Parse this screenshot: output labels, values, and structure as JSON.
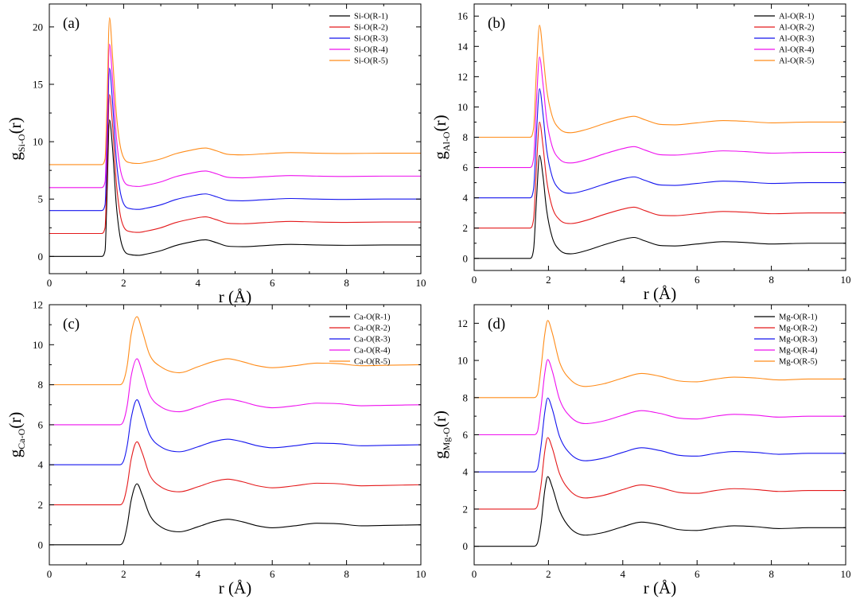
{
  "figure": {
    "colors": {
      "R-1": "#000000",
      "R-2": "#e41a1c",
      "R-3": "#1515ee",
      "R-4": "#ee11ee",
      "R-5": "#ff8c1a"
    }
  },
  "chart_data": [
    {
      "type": "line",
      "panel_label": "(a)",
      "pair": "Si-O",
      "xlabel": "r (Å)",
      "ylabel_main": "g",
      "ylabel_sub": "Si-O",
      "ylabel_tail": "(r)",
      "xlim": [
        0,
        10
      ],
      "ylim": [
        -1.5,
        22
      ],
      "xticks": [
        0,
        2,
        4,
        6,
        8,
        10
      ],
      "yticks": [
        0,
        5,
        10,
        15,
        20
      ],
      "legend_position": "top-right",
      "legend": [
        "Si-O(R-1)",
        "Si-O(R-2)",
        "Si-O(R-3)",
        "Si-O(R-4)",
        "Si-O(R-5)"
      ],
      "offsets": [
        0,
        2,
        4,
        6,
        8
      ],
      "peak_position": 1.62,
      "peak_heights": [
        11.9,
        14.1,
        16.4,
        18.5,
        20.8
      ],
      "x": [
        0,
        1.4,
        1.5,
        1.55,
        1.62,
        1.7,
        1.8,
        1.9,
        2.0,
        2.2,
        2.4,
        2.6,
        3.0,
        3.4,
        3.8,
        4.2,
        4.5,
        4.8,
        5.2,
        5.8,
        6.5,
        7.2,
        8.0,
        9.0,
        10
      ],
      "series": [
        {
          "name": "Si-O(R-1)",
          "color_key": "R-1",
          "values": [
            0,
            0,
            0.5,
            5.0,
            11.9,
            9.5,
            4.6,
            1.8,
            0.6,
            0.15,
            0.1,
            0.2,
            0.5,
            0.95,
            1.25,
            1.45,
            1.2,
            0.9,
            0.85,
            0.95,
            1.05,
            1.0,
            0.97,
            1.0,
            1.0
          ]
        },
        {
          "name": "Si-O(R-2)",
          "color_key": "R-2",
          "values": [
            2,
            2,
            2.5,
            7.0,
            14.1,
            11.5,
            6.6,
            3.8,
            2.6,
            2.15,
            2.1,
            2.2,
            2.5,
            2.95,
            3.25,
            3.45,
            3.2,
            2.9,
            2.85,
            2.95,
            3.05,
            3.0,
            2.97,
            3.0,
            3.0
          ]
        },
        {
          "name": "Si-O(R-3)",
          "color_key": "R-3",
          "values": [
            4,
            4,
            4.5,
            9.0,
            16.4,
            13.5,
            8.6,
            5.8,
            4.6,
            4.15,
            4.1,
            4.2,
            4.5,
            4.95,
            5.25,
            5.45,
            5.2,
            4.9,
            4.85,
            4.95,
            5.05,
            5.0,
            4.97,
            5.0,
            5.0
          ]
        },
        {
          "name": "Si-O(R-4)",
          "color_key": "R-4",
          "values": [
            6,
            6,
            6.5,
            11.0,
            18.5,
            15.5,
            10.6,
            7.8,
            6.6,
            6.15,
            6.1,
            6.2,
            6.5,
            6.95,
            7.25,
            7.45,
            7.2,
            6.9,
            6.85,
            6.95,
            7.05,
            7.0,
            6.97,
            7.0,
            7.0
          ]
        },
        {
          "name": "Si-O(R-5)",
          "color_key": "R-5",
          "values": [
            8,
            8,
            8.5,
            13.0,
            20.8,
            17.5,
            12.6,
            9.8,
            8.6,
            8.15,
            8.1,
            8.2,
            8.5,
            8.95,
            9.25,
            9.45,
            9.2,
            8.9,
            8.85,
            8.95,
            9.05,
            9.0,
            8.97,
            9.0,
            9.0
          ]
        }
      ]
    },
    {
      "type": "line",
      "panel_label": "(b)",
      "pair": "Al-O",
      "xlabel": "r (Å)",
      "ylabel_main": "g",
      "ylabel_sub": "Al-O",
      "ylabel_tail": "(r)",
      "xlim": [
        0,
        10
      ],
      "ylim": [
        -0.8,
        16.8
      ],
      "xticks": [
        0,
        2,
        4,
        6,
        8,
        10
      ],
      "yticks": [
        0,
        2,
        4,
        6,
        8,
        10,
        12,
        14,
        16
      ],
      "legend_position": "top-right",
      "legend": [
        "Al-O(R-1)",
        "Al-O(R-2)",
        "Al-O(R-3)",
        "Al-O(R-4)",
        "Al-O(R-5)"
      ],
      "offsets": [
        0,
        2,
        4,
        6,
        8
      ],
      "peak_position": 1.76,
      "peak_heights": [
        6.8,
        9.0,
        11.2,
        13.3,
        15.4
      ],
      "x": [
        0,
        1.5,
        1.6,
        1.68,
        1.76,
        1.85,
        1.95,
        2.1,
        2.3,
        2.6,
        3.0,
        3.5,
        4.0,
        4.3,
        4.6,
        5.0,
        5.4,
        6.0,
        6.7,
        7.3,
        8.0,
        9.0,
        10
      ],
      "series": [
        {
          "name": "Al-O(R-1)",
          "color_key": "R-1",
          "values": [
            0,
            0,
            0.6,
            4.0,
            6.8,
            5.5,
            3.2,
            1.4,
            0.55,
            0.3,
            0.5,
            0.9,
            1.25,
            1.38,
            1.15,
            0.85,
            0.82,
            0.95,
            1.1,
            1.05,
            0.95,
            1.0,
            1.0
          ]
        },
        {
          "name": "Al-O(R-2)",
          "color_key": "R-2",
          "values": [
            2,
            2,
            2.6,
            6.2,
            9.0,
            7.5,
            5.2,
            3.4,
            2.55,
            2.3,
            2.5,
            2.9,
            3.25,
            3.38,
            3.15,
            2.85,
            2.82,
            2.95,
            3.1,
            3.05,
            2.95,
            3.0,
            3.0
          ]
        },
        {
          "name": "Al-O(R-3)",
          "color_key": "R-3",
          "values": [
            4,
            4,
            4.6,
            8.4,
            11.2,
            9.6,
            7.2,
            5.4,
            4.55,
            4.3,
            4.5,
            4.9,
            5.25,
            5.38,
            5.15,
            4.85,
            4.82,
            4.95,
            5.1,
            5.05,
            4.95,
            5.0,
            5.0
          ]
        },
        {
          "name": "Al-O(R-4)",
          "color_key": "R-4",
          "values": [
            6,
            6,
            6.6,
            10.5,
            13.3,
            11.6,
            9.2,
            7.4,
            6.55,
            6.3,
            6.5,
            6.9,
            7.25,
            7.38,
            7.15,
            6.85,
            6.82,
            6.95,
            7.1,
            7.05,
            6.95,
            7.0,
            7.0
          ]
        },
        {
          "name": "Al-O(R-5)",
          "color_key": "R-5",
          "values": [
            8,
            8,
            8.6,
            12.6,
            15.4,
            13.6,
            11.2,
            9.4,
            8.55,
            8.3,
            8.5,
            8.9,
            9.25,
            9.38,
            9.15,
            8.85,
            8.82,
            8.95,
            9.1,
            9.05,
            8.95,
            9.0,
            9.0
          ]
        }
      ]
    },
    {
      "type": "line",
      "panel_label": "(c)",
      "pair": "Ca-O",
      "xlabel": "r (Å)",
      "ylabel_main": "g",
      "ylabel_sub": "Ca-O",
      "ylabel_tail": "(r)",
      "xlim": [
        0,
        10
      ],
      "ylim": [
        -1.0,
        12
      ],
      "xticks": [
        0,
        2,
        4,
        6,
        8,
        10
      ],
      "yticks": [
        0,
        2,
        4,
        6,
        8,
        10,
        12
      ],
      "legend_position": "top-right",
      "legend": [
        "Ca-O(R-1)",
        "Ca-O(R-2)",
        "Ca-O(R-3)",
        "Ca-O(R-4)",
        "Ca-O(R-5)"
      ],
      "offsets": [
        0,
        2,
        4,
        6,
        8
      ],
      "peak_position": 2.36,
      "peak_heights": [
        3.05,
        5.15,
        7.25,
        9.3,
        11.4
      ],
      "x": [
        0,
        1.9,
        2.0,
        2.1,
        2.2,
        2.36,
        2.5,
        2.7,
        3.0,
        3.5,
        4.0,
        4.4,
        4.8,
        5.2,
        5.6,
        6.0,
        6.6,
        7.2,
        7.8,
        8.4,
        9.0,
        10
      ],
      "series": [
        {
          "name": "Ca-O(R-1)",
          "color_key": "R-1",
          "values": [
            0,
            0,
            0.2,
            1.0,
            2.2,
            3.05,
            2.5,
            1.5,
            0.9,
            0.65,
            0.9,
            1.15,
            1.28,
            1.15,
            0.95,
            0.85,
            0.95,
            1.08,
            1.05,
            0.95,
            0.97,
            1.0
          ]
        },
        {
          "name": "Ca-O(R-2)",
          "color_key": "R-2",
          "values": [
            2,
            2,
            2.2,
            3.0,
            4.25,
            5.15,
            4.6,
            3.5,
            2.9,
            2.65,
            2.9,
            3.15,
            3.28,
            3.15,
            2.95,
            2.85,
            2.95,
            3.08,
            3.05,
            2.95,
            2.97,
            3.0
          ]
        },
        {
          "name": "Ca-O(R-3)",
          "color_key": "R-3",
          "values": [
            4,
            4,
            4.2,
            5.0,
            6.3,
            7.25,
            6.6,
            5.5,
            4.9,
            4.65,
            4.9,
            5.15,
            5.28,
            5.15,
            4.95,
            4.85,
            4.95,
            5.08,
            5.05,
            4.95,
            4.97,
            5.0
          ]
        },
        {
          "name": "Ca-O(R-4)",
          "color_key": "R-4",
          "values": [
            6,
            6,
            6.2,
            7.0,
            8.4,
            9.3,
            8.65,
            7.5,
            6.9,
            6.65,
            6.9,
            7.15,
            7.28,
            7.15,
            6.95,
            6.85,
            6.95,
            7.08,
            7.05,
            6.95,
            6.97,
            7.0
          ]
        },
        {
          "name": "Ca-O(R-5)",
          "color_key": "R-5",
          "values": [
            8,
            8,
            8.2,
            9.0,
            10.5,
            11.4,
            10.7,
            9.5,
            8.9,
            8.6,
            8.9,
            9.15,
            9.3,
            9.15,
            8.95,
            8.85,
            8.95,
            9.08,
            9.05,
            8.95,
            8.97,
            9.0
          ]
        }
      ]
    },
    {
      "type": "line",
      "panel_label": "(d)",
      "pair": "Mg-O",
      "xlabel": "r (Å)",
      "ylabel_main": "g",
      "ylabel_sub": "Mg-O",
      "ylabel_tail": "(r)",
      "xlim": [
        0,
        10
      ],
      "ylim": [
        -1.0,
        13
      ],
      "xticks": [
        0,
        2,
        4,
        6,
        8,
        10
      ],
      "yticks": [
        0,
        2,
        4,
        6,
        8,
        10,
        12
      ],
      "legend_position": "top-right",
      "legend": [
        "Mg-O(R-1)",
        "Mg-O(R-2)",
        "Mg-O(R-3)",
        "Mg-O(R-4)",
        "Mg-O(R-5)"
      ],
      "offsets": [
        0,
        2,
        4,
        6,
        8
      ],
      "peak_position": 1.98,
      "peak_heights": [
        3.75,
        5.85,
        7.98,
        10.05,
        12.15
      ],
      "x": [
        0,
        1.6,
        1.7,
        1.8,
        1.9,
        1.98,
        2.1,
        2.3,
        2.6,
        3.0,
        3.5,
        4.0,
        4.5,
        5.0,
        5.5,
        6.0,
        6.5,
        7.0,
        7.6,
        8.2,
        9.0,
        10
      ],
      "series": [
        {
          "name": "Mg-O(R-1)",
          "color_key": "R-1",
          "values": [
            0,
            0,
            0.15,
            1.2,
            3.0,
            3.75,
            3.2,
            1.9,
            0.95,
            0.6,
            0.75,
            1.05,
            1.3,
            1.15,
            0.9,
            0.85,
            1.0,
            1.1,
            1.05,
            0.95,
            1.0,
            1.0
          ]
        },
        {
          "name": "Mg-O(R-2)",
          "color_key": "R-2",
          "values": [
            2,
            2,
            2.15,
            3.3,
            5.1,
            5.85,
            5.3,
            3.9,
            2.95,
            2.6,
            2.75,
            3.05,
            3.3,
            3.15,
            2.9,
            2.85,
            3.0,
            3.1,
            3.05,
            2.95,
            3.0,
            3.0
          ]
        },
        {
          "name": "Mg-O(R-3)",
          "color_key": "R-3",
          "values": [
            4,
            4,
            4.15,
            5.4,
            7.2,
            7.98,
            7.4,
            5.9,
            4.95,
            4.6,
            4.75,
            5.05,
            5.3,
            5.15,
            4.9,
            4.85,
            5.0,
            5.1,
            5.05,
            4.95,
            5.0,
            5.0
          ]
        },
        {
          "name": "Mg-O(R-4)",
          "color_key": "R-4",
          "values": [
            6,
            6,
            6.15,
            7.5,
            9.3,
            10.05,
            9.45,
            7.9,
            6.95,
            6.6,
            6.75,
            7.05,
            7.3,
            7.15,
            6.9,
            6.85,
            7.0,
            7.1,
            7.05,
            6.95,
            7.0,
            7.0
          ]
        },
        {
          "name": "Mg-O(R-5)",
          "color_key": "R-5",
          "values": [
            8,
            8,
            8.15,
            9.6,
            11.4,
            12.15,
            11.5,
            9.9,
            8.95,
            8.6,
            8.75,
            9.05,
            9.3,
            9.15,
            8.9,
            8.85,
            9.0,
            9.1,
            9.05,
            8.95,
            9.0,
            9.0
          ]
        }
      ]
    }
  ]
}
